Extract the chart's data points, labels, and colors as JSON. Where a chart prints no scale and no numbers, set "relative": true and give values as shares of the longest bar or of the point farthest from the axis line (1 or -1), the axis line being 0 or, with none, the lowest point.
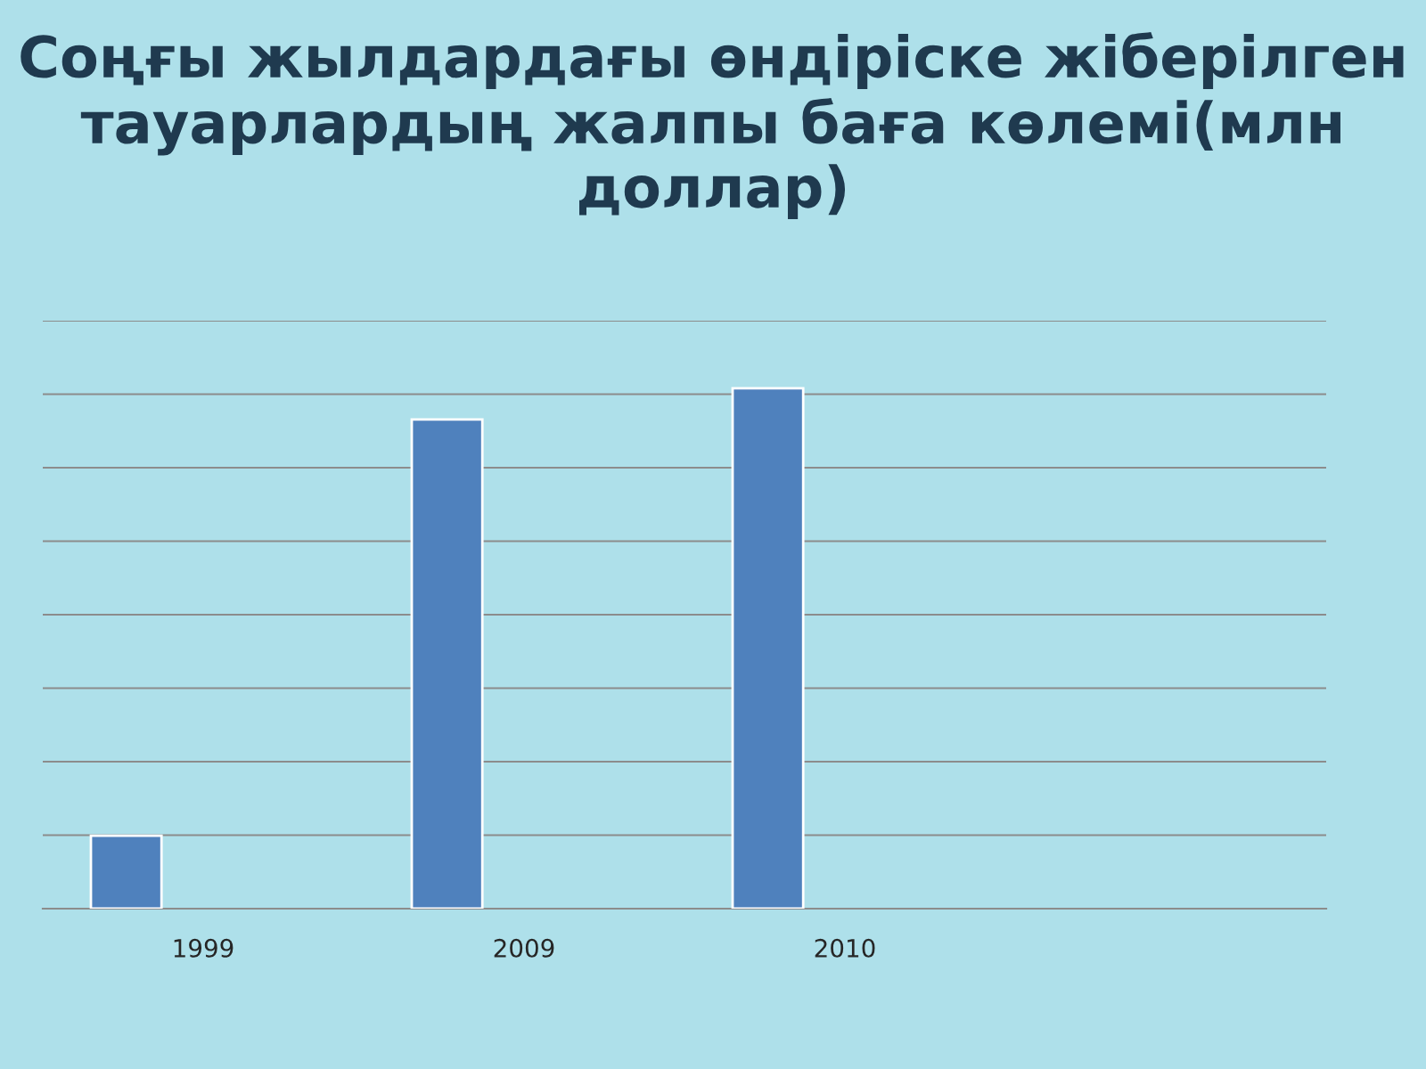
{
  "chart_data": {
    "type": "bar",
    "title": "Соңғы жылдардағы өндіріске жіберілген тауарлардың жалпы баға көлемі(млн доллар)",
    "categories": [
      "1999",
      "2009",
      "2010",
      null
    ],
    "values": [
      0.14,
      0.94,
      1,
      null
    ],
    "color": "#4f81bd",
    "relative": true,
    "grid": "y",
    "legend": false
  }
}
